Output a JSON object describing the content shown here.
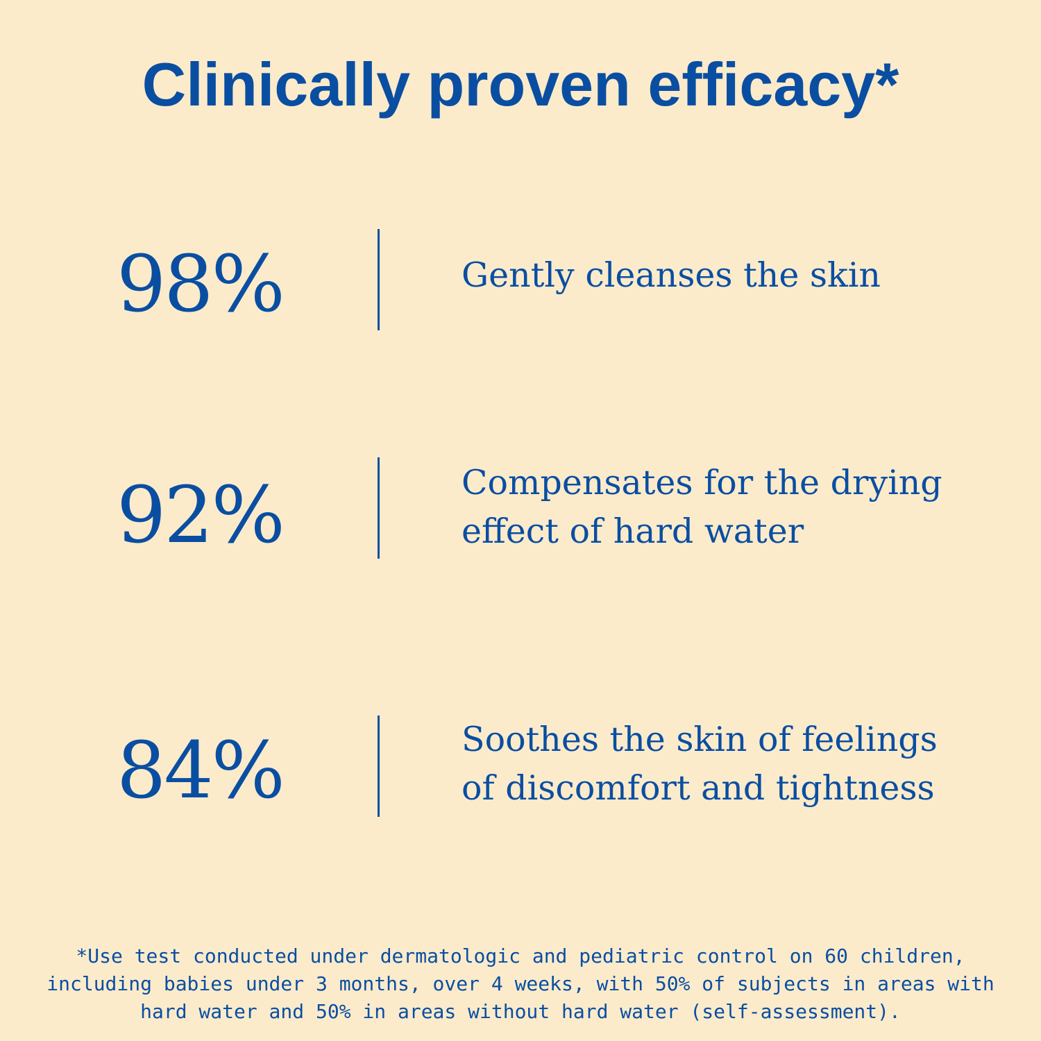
{
  "title": "Clinically proven efficacy*",
  "stats": [
    {
      "value": "98%",
      "lines": [
        "Gently cleanses the skin"
      ]
    },
    {
      "value": "92%",
      "lines": [
        "Compensates for the drying",
        "effect of hard water"
      ]
    },
    {
      "value": "84%",
      "lines": [
        "Soothes the skin of feelings",
        "of discomfort and tightness"
      ]
    }
  ],
  "footnote": [
    "*Use test conducted under dermatologic and pediatric control on 60 children,",
    "including babies under 3 months, over 4 weeks, with 50% of subjects in areas with",
    "hard water and 50% in areas without hard water (self-assessment)."
  ],
  "colors": {
    "background": "#FBEBCB",
    "accent": "#0A4EA2"
  }
}
